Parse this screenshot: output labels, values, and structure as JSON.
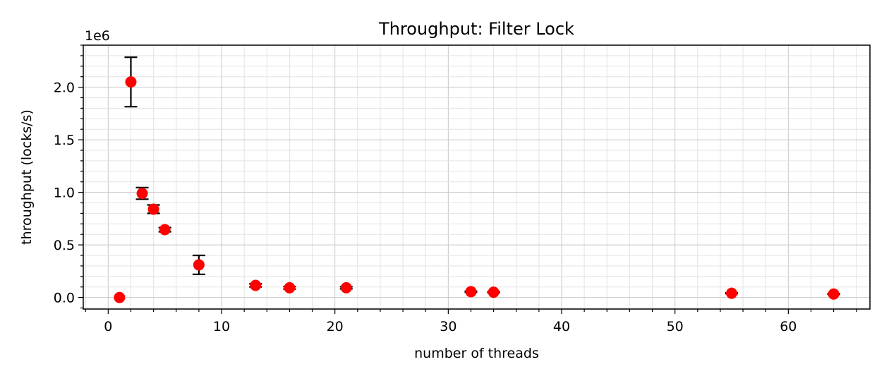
{
  "chart_data": {
    "type": "scatter",
    "title": "Throughput: Filter Lock",
    "xlabel": "number of threads",
    "ylabel": "throughput (locks/s)",
    "y_offset_label": "1e6",
    "y_scale_factor": 1000000,
    "xlim": [
      -2.2,
      67.2
    ],
    "ylim": [
      -110000,
      2400000
    ],
    "x_ticks": [
      0,
      10,
      20,
      30,
      40,
      50,
      60
    ],
    "x_tick_labels": [
      "0",
      "10",
      "20",
      "30",
      "40",
      "50",
      "60"
    ],
    "y_ticks": [
      0,
      500000,
      1000000,
      1500000,
      2000000
    ],
    "y_tick_labels": [
      "0.0",
      "0.5",
      "1.0",
      "1.5",
      "2.0"
    ],
    "grid": true,
    "marker_color": "#ff0000",
    "errorbar_color": "#000000",
    "points": [
      {
        "x": 1,
        "y": 0,
        "err": 0
      },
      {
        "x": 2,
        "y": 2050000,
        "err": 235000
      },
      {
        "x": 3,
        "y": 990000,
        "err": 55000
      },
      {
        "x": 4,
        "y": 840000,
        "err": 40000
      },
      {
        "x": 5,
        "y": 645000,
        "err": 20000
      },
      {
        "x": 8,
        "y": 310000,
        "err": 90000
      },
      {
        "x": 13,
        "y": 115000,
        "err": 15000
      },
      {
        "x": 16,
        "y": 92000,
        "err": 12000
      },
      {
        "x": 21,
        "y": 92000,
        "err": 10000
      },
      {
        "x": 32,
        "y": 55000,
        "err": 5000
      },
      {
        "x": 34,
        "y": 50000,
        "err": 5000
      },
      {
        "x": 55,
        "y": 40000,
        "err": 4000
      },
      {
        "x": 64,
        "y": 33000,
        "err": 4000
      }
    ]
  }
}
